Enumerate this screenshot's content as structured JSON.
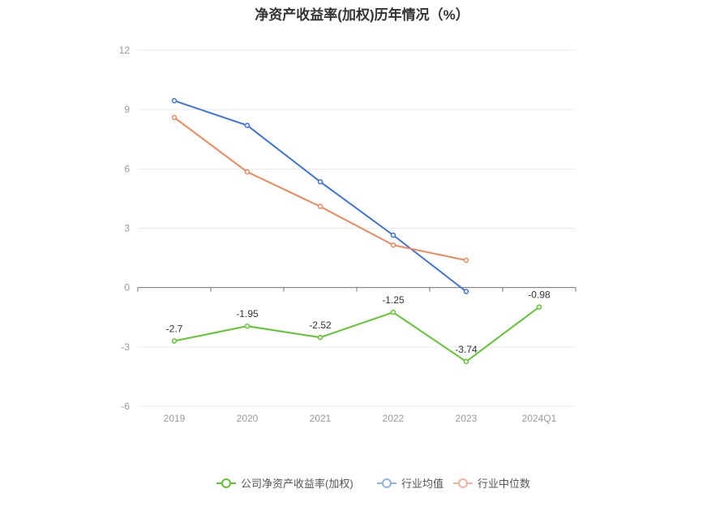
{
  "chart_data": {
    "type": "line",
    "title": "净资产收益率(加权)历年情况（%）",
    "categories": [
      "2019",
      "2020",
      "2021",
      "2022",
      "2023",
      "2024Q1"
    ],
    "ylim": [
      -6,
      12
    ],
    "yticks": [
      12,
      9,
      6,
      3,
      0,
      -3,
      -6
    ],
    "grid": true,
    "legend_position": "bottom",
    "series": [
      {
        "name": "公司净资产收益率(加权)",
        "color": "#5dc62d",
        "values": [
          -2.7,
          -1.95,
          -2.52,
          -1.25,
          -3.74,
          -0.98
        ],
        "labels": [
          "-2.7",
          "-1.95",
          "-2.52",
          "-1.25",
          "-3.74",
          "-0.98"
        ]
      },
      {
        "name": "行业均值",
        "color": "#3b73db",
        "values": [
          9.45,
          8.2,
          5.35,
          2.65,
          -0.2,
          null
        ]
      },
      {
        "name": "行业中位数",
        "color": "#f08758",
        "values": [
          8.6,
          5.85,
          4.1,
          2.15,
          1.38,
          null
        ]
      }
    ]
  }
}
